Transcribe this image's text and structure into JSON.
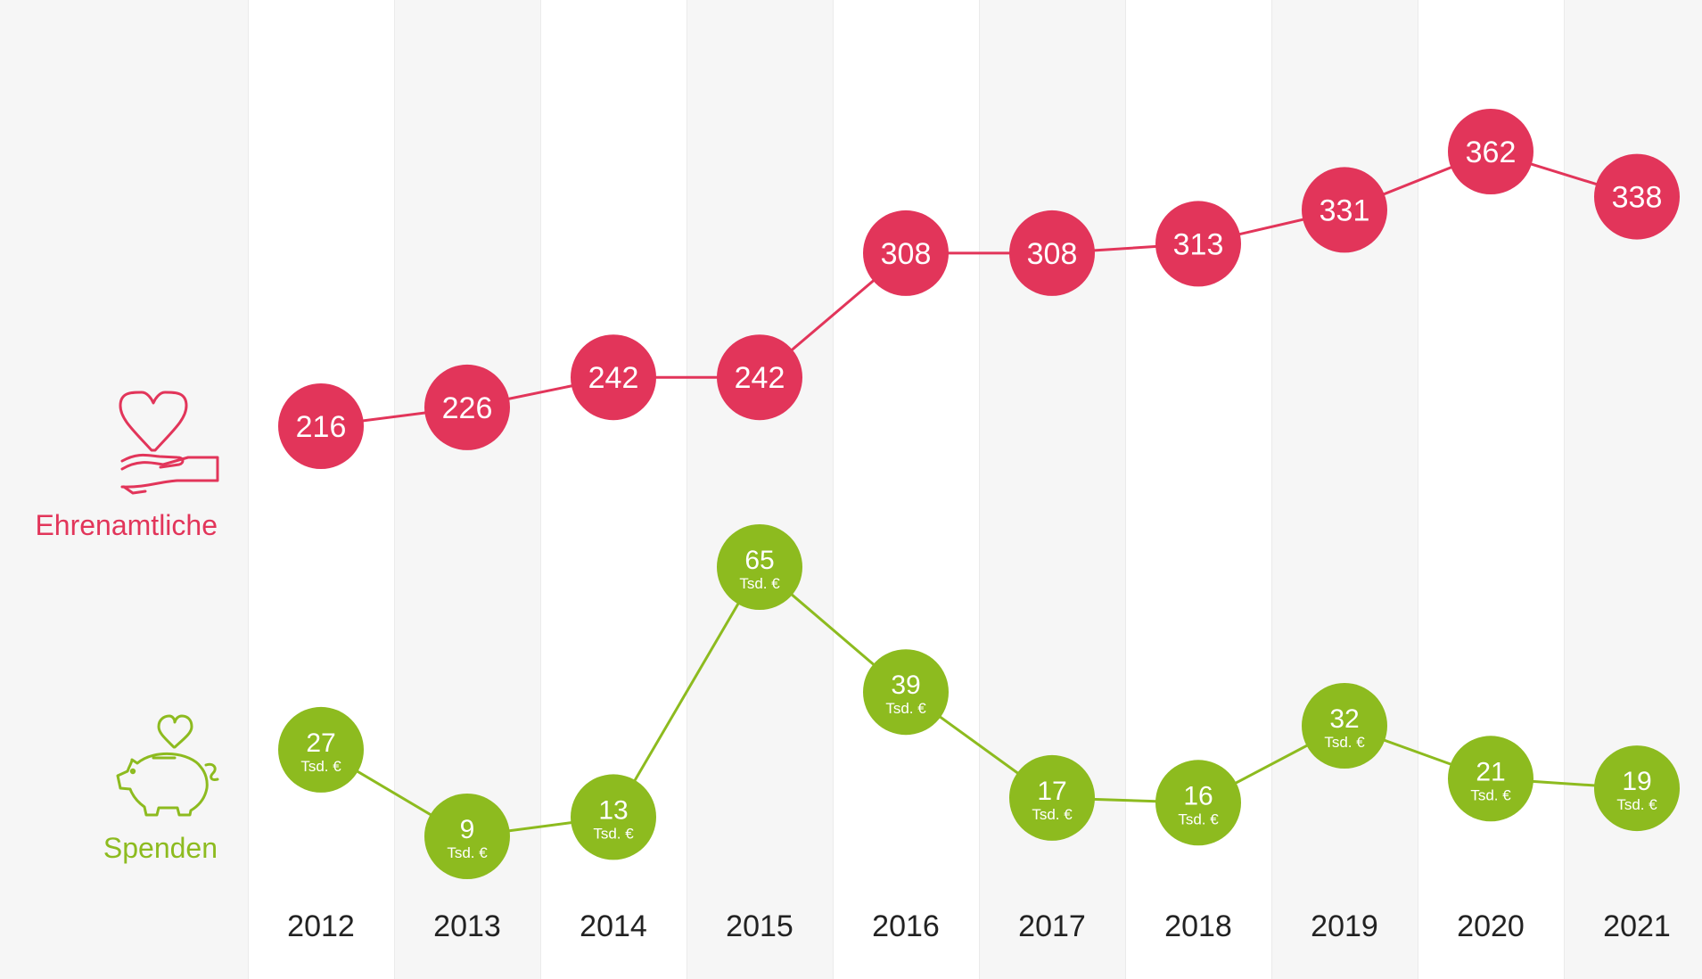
{
  "colors": {
    "ehrenamtliche": "#e2355a",
    "spenden": "#8dbb1f",
    "column_light": "#f6f6f6",
    "column_white": "#ffffff",
    "text": "#222222"
  },
  "legend": {
    "ehrenamtliche": {
      "label": "Ehrenamtliche",
      "icon": "hand-heart-icon"
    },
    "spenden": {
      "label": "Spenden",
      "icon": "piggy-bank-heart-icon"
    }
  },
  "chart_data": {
    "type": "line",
    "x": [
      "2012",
      "2013",
      "2014",
      "2015",
      "2016",
      "2017",
      "2018",
      "2019",
      "2020",
      "2021"
    ],
    "grid": "alternating column bands",
    "series": [
      {
        "name": "Ehrenamtliche",
        "values": [
          216,
          226,
          242,
          242,
          308,
          308,
          313,
          331,
          362,
          338
        ],
        "unit": ""
      },
      {
        "name": "Spenden",
        "values": [
          27,
          9,
          13,
          65,
          39,
          17,
          16,
          32,
          21,
          19
        ],
        "unit": "Tsd. €"
      }
    ]
  }
}
